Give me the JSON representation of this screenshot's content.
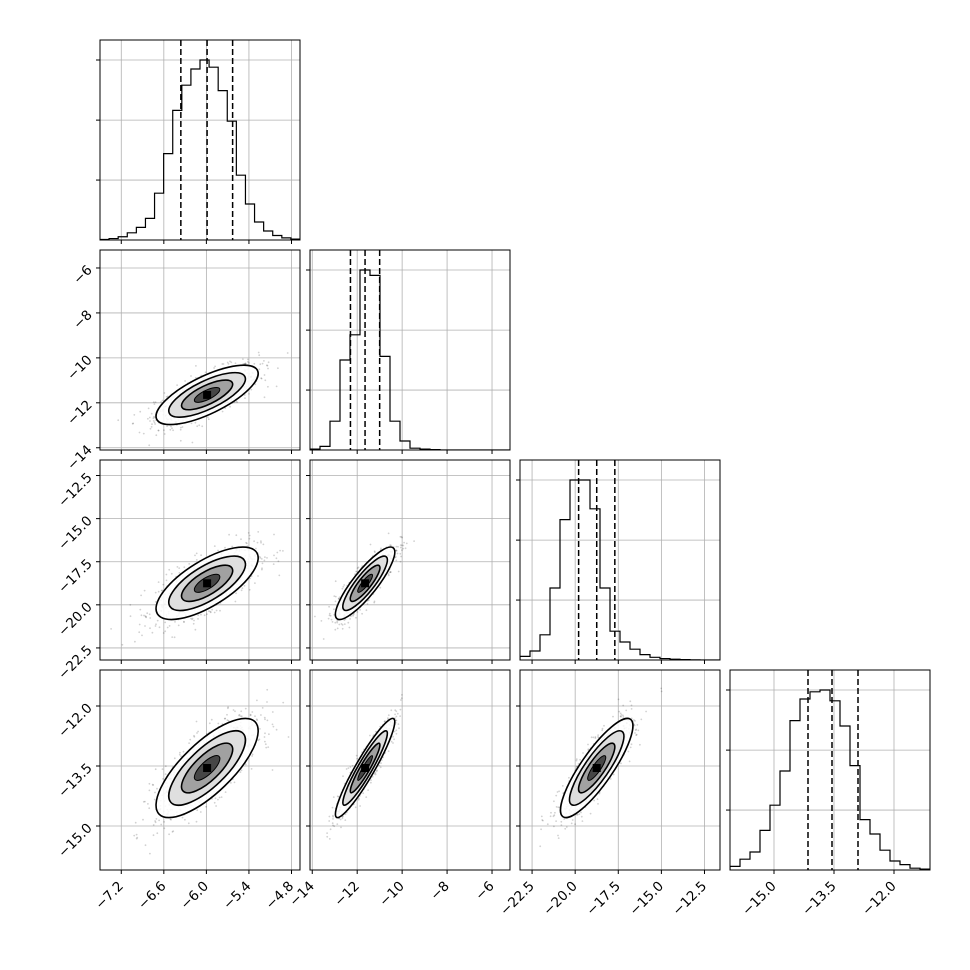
{
  "chart_data": {
    "type": "corner",
    "grid": true,
    "colors": {
      "hist": "#000000",
      "scatter": "#000000",
      "grid": "#b0b0b0",
      "background": "#ffffff"
    },
    "parameters": [
      {
        "ticks": [
          -7.2,
          -6.6,
          -6.0,
          -5.4,
          -4.8
        ],
        "tick_labels": [
          "−7.2",
          "−6.6",
          "−6.0",
          "−5.4",
          "−4.8"
        ],
        "range": [
          -7.5,
          -4.68
        ],
        "quantiles": [
          -6.36,
          -5.99,
          -5.63
        ],
        "mean": -5.99,
        "sd": 0.36
      },
      {
        "ticks": [
          -14,
          -12,
          -10,
          -8,
          -6
        ],
        "tick_labels": [
          "−14",
          "−12",
          "−10",
          "−8",
          "−6"
        ],
        "range": [
          -14.1,
          -5.2
        ],
        "quantiles": [
          -12.3,
          -11.65,
          -11.0
        ],
        "mean": -11.65,
        "sd": 0.66
      },
      {
        "ticks": [
          -22.5,
          -20.0,
          -17.5,
          -15.0,
          -12.5
        ],
        "tick_labels": [
          "−22.5",
          "−20.0",
          "−17.5",
          "−15.0",
          "−12.5"
        ],
        "range": [
          -23.2,
          -11.6
        ],
        "quantiles": [
          -19.8,
          -18.75,
          -17.7
        ],
        "mean": -18.75,
        "sd": 1.05
      },
      {
        "ticks": [
          -15.0,
          -13.5,
          -12.0
        ],
        "tick_labels": [
          "−15.0",
          "−13.5",
          "−12.0"
        ],
        "range": [
          -16.1,
          -11.1
        ],
        "quantiles": [
          -14.15,
          -13.55,
          -12.9
        ],
        "mean": -13.55,
        "sd": 0.62
      }
    ],
    "correlations": [
      [
        1,
        0.72,
        0.7,
        0.75
      ],
      [
        0.72,
        1,
        0.86,
        0.93
      ],
      [
        0.7,
        0.86,
        1,
        0.85
      ],
      [
        0.75,
        0.93,
        0.85,
        1
      ]
    ],
    "diagonal_histograms": [
      [
        0.003,
        0.008,
        0.018,
        0.04,
        0.07,
        0.12,
        0.26,
        0.48,
        0.72,
        0.86,
        0.95,
        1.0,
        0.96,
        0.83,
        0.66,
        0.36,
        0.2,
        0.1,
        0.05,
        0.025,
        0.012,
        0.005
      ],
      [
        0.005,
        0.02,
        0.16,
        0.5,
        0.64,
        1.0,
        0.97,
        0.52,
        0.16,
        0.05,
        0.01,
        0.005,
        0.002,
        0.0,
        0.0,
        0.0,
        0.0,
        0.0,
        0.0,
        0.0
      ],
      [
        0.02,
        0.05,
        0.14,
        0.4,
        0.78,
        1.0,
        1.0,
        0.84,
        0.4,
        0.16,
        0.1,
        0.06,
        0.03,
        0.015,
        0.008,
        0.004,
        0.002,
        0.001,
        0.0,
        0.0
      ],
      [
        0.02,
        0.06,
        0.1,
        0.22,
        0.36,
        0.55,
        0.83,
        0.95,
        0.99,
        1.0,
        0.94,
        0.8,
        0.58,
        0.28,
        0.2,
        0.11,
        0.05,
        0.03,
        0.01,
        0.005
      ]
    ]
  }
}
